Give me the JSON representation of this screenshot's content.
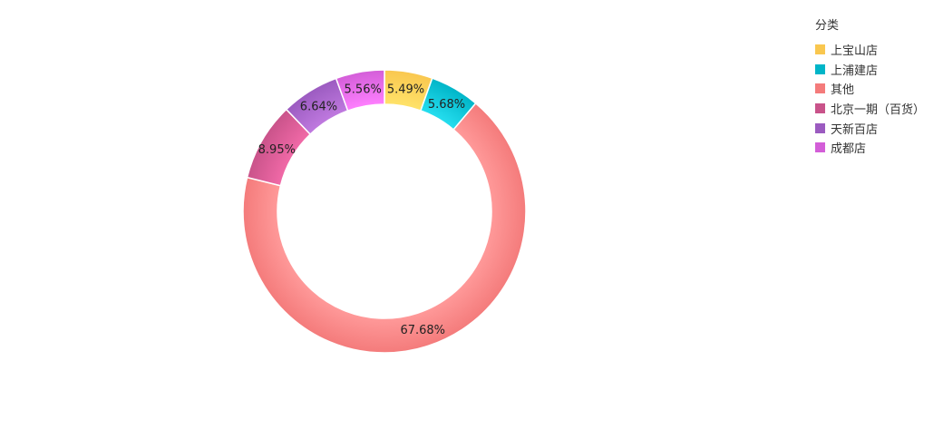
{
  "chart_data": {
    "type": "pie",
    "variant": "donut",
    "legend_title": "分类",
    "legend_position": "top-right",
    "categories": [
      "上宝山店",
      "上浦建店",
      "其他",
      "北京一期（百货）",
      "天新百店",
      "成都店"
    ],
    "values": [
      5.49,
      5.68,
      67.68,
      8.95,
      6.64,
      5.56
    ],
    "labels": [
      "5.49%",
      "5.68%",
      "67.68%",
      "8.95%",
      "6.64%",
      "5.56%"
    ],
    "colors": [
      "#f9c74f",
      "#00b5c8",
      "#f47b7b",
      "#c9538a",
      "#9b5bc0",
      "#d35ed8"
    ],
    "gradient_end_colors": [
      "#ffe36a",
      "#27dff0",
      "#ff9a9a",
      "#f26aa8",
      "#c07ae0",
      "#ff80ff"
    ]
  }
}
